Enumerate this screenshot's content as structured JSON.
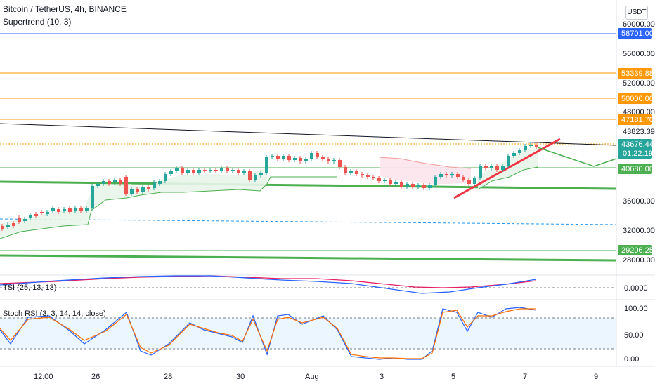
{
  "header": {
    "symbol_title": "Bitcoin / TetherUS, 4h, BINANCE",
    "indicator_title": "Supertrend (10, 3)"
  },
  "currency_button": "USDT",
  "panes": {
    "tsi_label": "TSI (25, 13, 13)",
    "stoch_label": "Stoch RSI (3, 3, 14, 14, close)"
  },
  "price_axis": {
    "ticks": [
      "60000.00",
      "56000.00",
      "52000.00",
      "48000.00",
      "43823.39",
      "36000.00",
      "32000.00",
      "28000.00"
    ]
  },
  "price_badges": [
    {
      "label": "58701.00",
      "color": "#2962ff"
    },
    {
      "label": "53339.88",
      "color": "#ff9800"
    },
    {
      "label": "50000.00",
      "color": "#ff9800"
    },
    {
      "label": "47181.70",
      "color": "#ff9800"
    },
    {
      "label": "43676.44",
      "color": "#26a69a"
    },
    {
      "label": "01:22:19",
      "color": "#26a69a"
    },
    {
      "label": "40680.00",
      "color": "#4caf50"
    },
    {
      "label": "29206.25",
      "color": "#4caf50"
    }
  ],
  "tsi_axis": {
    "ticks": [
      "0.0000"
    ]
  },
  "stoch_axis": {
    "ticks": [
      "100.00",
      "50.00",
      "0.00"
    ]
  },
  "time_axis": {
    "ticks": [
      "12:00",
      "26",
      "28",
      "30",
      "Aug",
      "3",
      "5",
      "7",
      "9"
    ]
  },
  "colors": {
    "up": "#26a69a",
    "down": "#ef5350",
    "support_line": "#4caf50",
    "resistance_level": "#ff9800",
    "blue_level": "#2962ff",
    "trend_line": "#f23645",
    "tsi_line": "#2962ff",
    "tsi_signal": "#e91e63",
    "stoch_k": "#2962ff",
    "stoch_d": "#ff6d00"
  }
}
